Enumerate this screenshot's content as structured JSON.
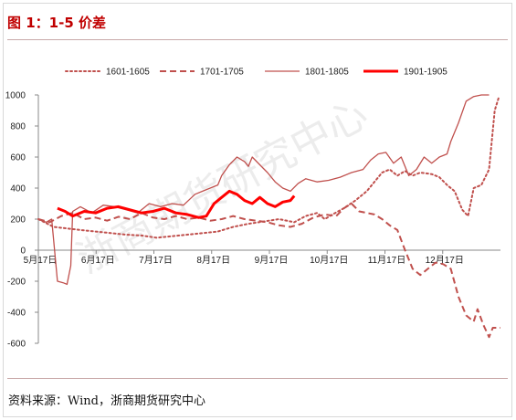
{
  "header": {
    "title": "图 1：1-5 价差"
  },
  "footer": {
    "source": "资料来源：Wind，浙商期货研究中心"
  },
  "watermark": "浙商期货研究中心",
  "chart_data": {
    "type": "line",
    "title": "",
    "xlabel": "",
    "ylabel": "",
    "x_ticks": [
      "5月17日",
      "6月17日",
      "7月17日",
      "8月17日",
      "9月17日",
      "10月17日",
      "11月17日",
      "12月17日"
    ],
    "x_range": [
      0,
      242
    ],
    "ylim": [
      -600,
      1000
    ],
    "y_ticks": [
      -600,
      -400,
      -200,
      0,
      200,
      400,
      600,
      800,
      1000
    ],
    "grid": false,
    "legend_position": "top",
    "series": [
      {
        "name": "1601-1605",
        "color": "#c0504d",
        "style": "dotted",
        "width": 2,
        "points": [
          [
            0,
            200
          ],
          [
            8,
            150
          ],
          [
            15,
            140
          ],
          [
            22,
            130
          ],
          [
            30,
            120
          ],
          [
            38,
            110
          ],
          [
            46,
            100
          ],
          [
            54,
            95
          ],
          [
            62,
            80
          ],
          [
            70,
            90
          ],
          [
            78,
            100
          ],
          [
            86,
            110
          ],
          [
            94,
            120
          ],
          [
            102,
            150
          ],
          [
            110,
            170
          ],
          [
            118,
            185
          ],
          [
            126,
            200
          ],
          [
            134,
            180
          ],
          [
            140,
            220
          ],
          [
            146,
            240
          ],
          [
            150,
            200
          ],
          [
            154,
            230
          ],
          [
            160,
            270
          ],
          [
            166,
            320
          ],
          [
            172,
            380
          ],
          [
            176,
            440
          ],
          [
            180,
            500
          ],
          [
            184,
            520
          ],
          [
            188,
            480
          ],
          [
            192,
            510
          ],
          [
            196,
            480
          ],
          [
            200,
            500
          ],
          [
            206,
            490
          ],
          [
            210,
            470
          ],
          [
            214,
            420
          ],
          [
            218,
            380
          ],
          [
            222,
            260
          ],
          [
            225,
            220
          ],
          [
            228,
            400
          ],
          [
            232,
            420
          ],
          [
            236,
            520
          ],
          [
            239,
            900
          ],
          [
            241,
            980
          ]
        ]
      },
      {
        "name": "1701-1705",
        "color": "#c0504d",
        "style": "dashed",
        "width": 2,
        "points": [
          [
            0,
            200
          ],
          [
            6,
            180
          ],
          [
            12,
            220
          ],
          [
            18,
            240
          ],
          [
            24,
            200
          ],
          [
            30,
            210
          ],
          [
            36,
            190
          ],
          [
            42,
            215
          ],
          [
            48,
            200
          ],
          [
            54,
            240
          ],
          [
            60,
            210
          ],
          [
            66,
            200
          ],
          [
            72,
            220
          ],
          [
            78,
            200
          ],
          [
            84,
            210
          ],
          [
            90,
            190
          ],
          [
            96,
            200
          ],
          [
            102,
            220
          ],
          [
            108,
            200
          ],
          [
            114,
            190
          ],
          [
            120,
            180
          ],
          [
            126,
            160
          ],
          [
            132,
            150
          ],
          [
            138,
            170
          ],
          [
            144,
            210
          ],
          [
            150,
            230
          ],
          [
            156,
            220
          ],
          [
            160,
            270
          ],
          [
            164,
            300
          ],
          [
            168,
            250
          ],
          [
            172,
            240
          ],
          [
            176,
            230
          ],
          [
            180,
            200
          ],
          [
            184,
            160
          ],
          [
            188,
            130
          ],
          [
            192,
            0
          ],
          [
            196,
            -120
          ],
          [
            200,
            -160
          ],
          [
            204,
            -120
          ],
          [
            208,
            -80
          ],
          [
            212,
            -90
          ],
          [
            216,
            -120
          ],
          [
            220,
            -300
          ],
          [
            224,
            -420
          ],
          [
            228,
            -460
          ],
          [
            230,
            -380
          ],
          [
            233,
            -480
          ],
          [
            236,
            -560
          ],
          [
            238,
            -500
          ],
          [
            242,
            -500
          ]
        ]
      },
      {
        "name": "1801-1805",
        "color": "#c0504d",
        "style": "solid",
        "width": 1.3,
        "points": [
          [
            0,
            200
          ],
          [
            4,
            180
          ],
          [
            7,
            200
          ],
          [
            10,
            -200
          ],
          [
            13,
            -210
          ],
          [
            15,
            -220
          ],
          [
            17,
            -100
          ],
          [
            18,
            250
          ],
          [
            22,
            280
          ],
          [
            28,
            240
          ],
          [
            34,
            290
          ],
          [
            40,
            280
          ],
          [
            46,
            260
          ],
          [
            52,
            240
          ],
          [
            58,
            300
          ],
          [
            64,
            280
          ],
          [
            70,
            300
          ],
          [
            76,
            290
          ],
          [
            82,
            360
          ],
          [
            86,
            380
          ],
          [
            90,
            400
          ],
          [
            94,
            420
          ],
          [
            96,
            480
          ],
          [
            100,
            550
          ],
          [
            104,
            600
          ],
          [
            108,
            570
          ],
          [
            110,
            540
          ],
          [
            112,
            600
          ],
          [
            116,
            550
          ],
          [
            120,
            500
          ],
          [
            124,
            440
          ],
          [
            128,
            400
          ],
          [
            132,
            380
          ],
          [
            136,
            430
          ],
          [
            140,
            460
          ],
          [
            146,
            440
          ],
          [
            152,
            450
          ],
          [
            158,
            470
          ],
          [
            164,
            500
          ],
          [
            170,
            520
          ],
          [
            174,
            580
          ],
          [
            178,
            620
          ],
          [
            182,
            630
          ],
          [
            186,
            560
          ],
          [
            190,
            600
          ],
          [
            194,
            480
          ],
          [
            198,
            520
          ],
          [
            202,
            600
          ],
          [
            206,
            560
          ],
          [
            210,
            600
          ],
          [
            214,
            620
          ],
          [
            216,
            700
          ],
          [
            220,
            820
          ],
          [
            224,
            960
          ],
          [
            228,
            990
          ],
          [
            232,
            1000
          ],
          [
            236,
            1000
          ]
        ]
      },
      {
        "name": "1901-1905",
        "color": "#ff0000",
        "style": "solid",
        "width": 3,
        "points": [
          [
            10,
            270
          ],
          [
            14,
            250
          ],
          [
            18,
            220
          ],
          [
            24,
            250
          ],
          [
            30,
            240
          ],
          [
            36,
            270
          ],
          [
            42,
            280
          ],
          [
            48,
            260
          ],
          [
            54,
            240
          ],
          [
            60,
            250
          ],
          [
            66,
            270
          ],
          [
            72,
            240
          ],
          [
            78,
            230
          ],
          [
            84,
            210
          ],
          [
            88,
            220
          ],
          [
            92,
            300
          ],
          [
            96,
            340
          ],
          [
            100,
            380
          ],
          [
            104,
            360
          ],
          [
            108,
            320
          ],
          [
            112,
            300
          ],
          [
            116,
            340
          ],
          [
            120,
            300
          ],
          [
            124,
            280
          ],
          [
            128,
            310
          ],
          [
            132,
            320
          ],
          [
            134,
            350
          ]
        ]
      }
    ]
  }
}
